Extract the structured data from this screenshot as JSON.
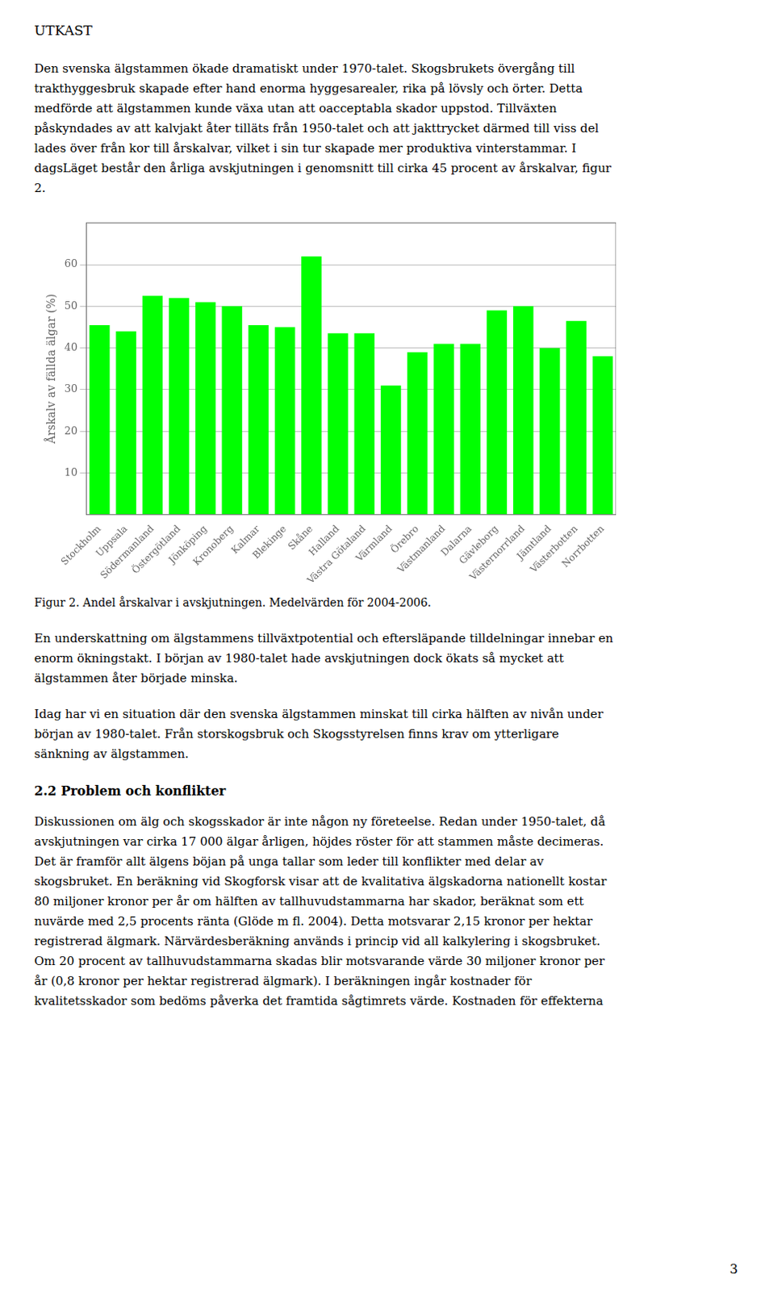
{
  "heading": "UTKAST",
  "paragraphs_before_chart": [
    [
      "Den svenska älgstammen ökade dramatiskt under 1970-talet. Skogsbrukets övergång till",
      "trakthyggesbruk skapade efter hand enorma hyggesarealer, rika på lövsly och örter. Detta",
      "medförde att älgstammen kunde växa utan att oacceptabla skador uppstod. Tillväxten",
      "påskyndades av att kalvjakt åter tilläts från 1950-talet och att jakttrycket därmed till viss del",
      "lades över från kor till årskalvar, vilket i sin tur skapade mer produktiva vinterstammar. I",
      "dagsLäget består den årliga avskjutningen i genomsnitt till cirka 45 procent av årskalvar, figur",
      "2."
    ]
  ],
  "caption": "Figur 2. Andel årskalvar i avskjutningen. Medelvärden för 2004-2006.",
  "paragraphs_after_chart": [
    [
      "En underskattning om älgstammens tillväxtpotential och eftersläpande tilldelningar innebar en",
      "enorm ökningstakt. I början av 1980-talet hade avskjutningen dock ökats så mycket att",
      "älgstammen åter började minska."
    ],
    [
      "Idag har vi en situation där den svenska älgstammen minskat till cirka hälften av nivån under",
      "början av 1980-talet. Från storskogsbruk och Skogsstyrelsen finns krav om ytterligare",
      "sänkning av älgstammen."
    ]
  ],
  "section_title": "2.2 Problem och konflikter",
  "section_paragraphs": [
    [
      "Diskussionen om älg och skogsskador är inte någon ny företeelse. Redan under 1950-talet, då",
      "avskjutningen var cirka 17 000 älgar årligen, höjdes röster för att stammen måste decimeras.",
      "Det är framför allt älgens böjan på unga tallar som leder till konflikter med delar av",
      "skogsbruket. En beräkning vid Skogforsk visar att de kvalitativa älgskadorna nationellt kostar",
      "80 miljoner kronor per år om hälften av tallhuvudstammarna har skador, beräknat som ett",
      "nuvärde med 2,5 procents ränta (Glöde m fl. 2004). Detta motsvarar 2,15 kronor per hektar",
      "registrerad älgmark. Närvärdesberäkning används i princip vid all kalkylering i skogsbruket.",
      "Om 20 procent av tallhuvudstammarna skadas blir motsvarande värde 30 miljoner kronor per",
      "år (0,8 kronor per hektar registrerad älgmark). I beräkningen ingår kostnader för",
      "kvalitetsskador som bedöms påverka det framtida sågtimrets värde. Kostnaden för effekterna"
    ]
  ],
  "page_number": "3",
  "chart_data": {
    "type": "bar",
    "categories": [
      "Stockholm",
      "Uppsala",
      "Södermanland",
      "Östergötland",
      "Jönköping",
      "Kronoberg",
      "Kalmar",
      "Blekinge",
      "Skåne",
      "Halland",
      "Västra Götaland",
      "Värmland",
      "Örebro",
      "Västmanland",
      "Dalarna",
      "Gävleborg",
      "Västernorrland",
      "Jämtland",
      "Västerbotten",
      "Norrbotten"
    ],
    "values": [
      45.5,
      44.0,
      52.5,
      52.0,
      51.0,
      50.0,
      45.5,
      45.0,
      62.0,
      43.5,
      43.5,
      31.0,
      39.0,
      41.0,
      41.0,
      49.0,
      50.0,
      40.0,
      46.5,
      38.0
    ],
    "color": "#00FF00",
    "ylabel": "Årskalv av fällda älgar (%)",
    "ylim": [
      0,
      70
    ],
    "yticks": [
      10,
      20,
      30,
      40,
      50,
      60
    ],
    "grid": true
  }
}
